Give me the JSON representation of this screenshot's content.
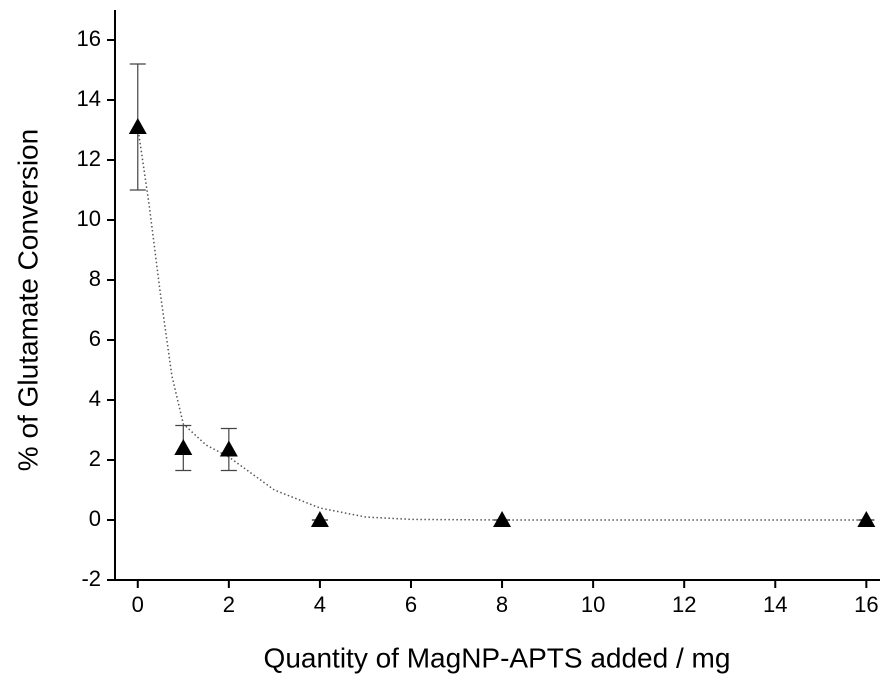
{
  "chart_data": {
    "type": "scatter",
    "xlabel": "Quantity of MagNP-APTS added / mg",
    "ylabel": "% of Glutamate Conversion",
    "series": [
      {
        "color": "#000000",
        "x": [
          0,
          1,
          2,
          4,
          8,
          16
        ],
        "values": [
          13.1,
          2.4,
          2.35,
          0,
          0,
          0
        ],
        "errors": [
          2.1,
          0.75,
          0.7,
          0,
          0,
          0
        ]
      }
    ],
    "fit": {
      "color": "#555555",
      "x": [
        0,
        0.25,
        0.5,
        0.75,
        1,
        1.5,
        2,
        3,
        4,
        5,
        6,
        8,
        16
      ],
      "values": [
        13.1,
        10.5,
        7.5,
        4.8,
        3.2,
        2.5,
        2.1,
        1.0,
        0.4,
        0.1,
        0.02,
        0,
        0
      ]
    },
    "xlim": [
      -0.5,
      16.3
    ],
    "ylim": [
      -2,
      17
    ],
    "xticks": [
      0,
      2,
      4,
      6,
      8,
      10,
      12,
      14,
      16
    ],
    "yticks": [
      -2,
      0,
      2,
      4,
      6,
      8,
      10,
      12,
      14,
      16
    ]
  }
}
